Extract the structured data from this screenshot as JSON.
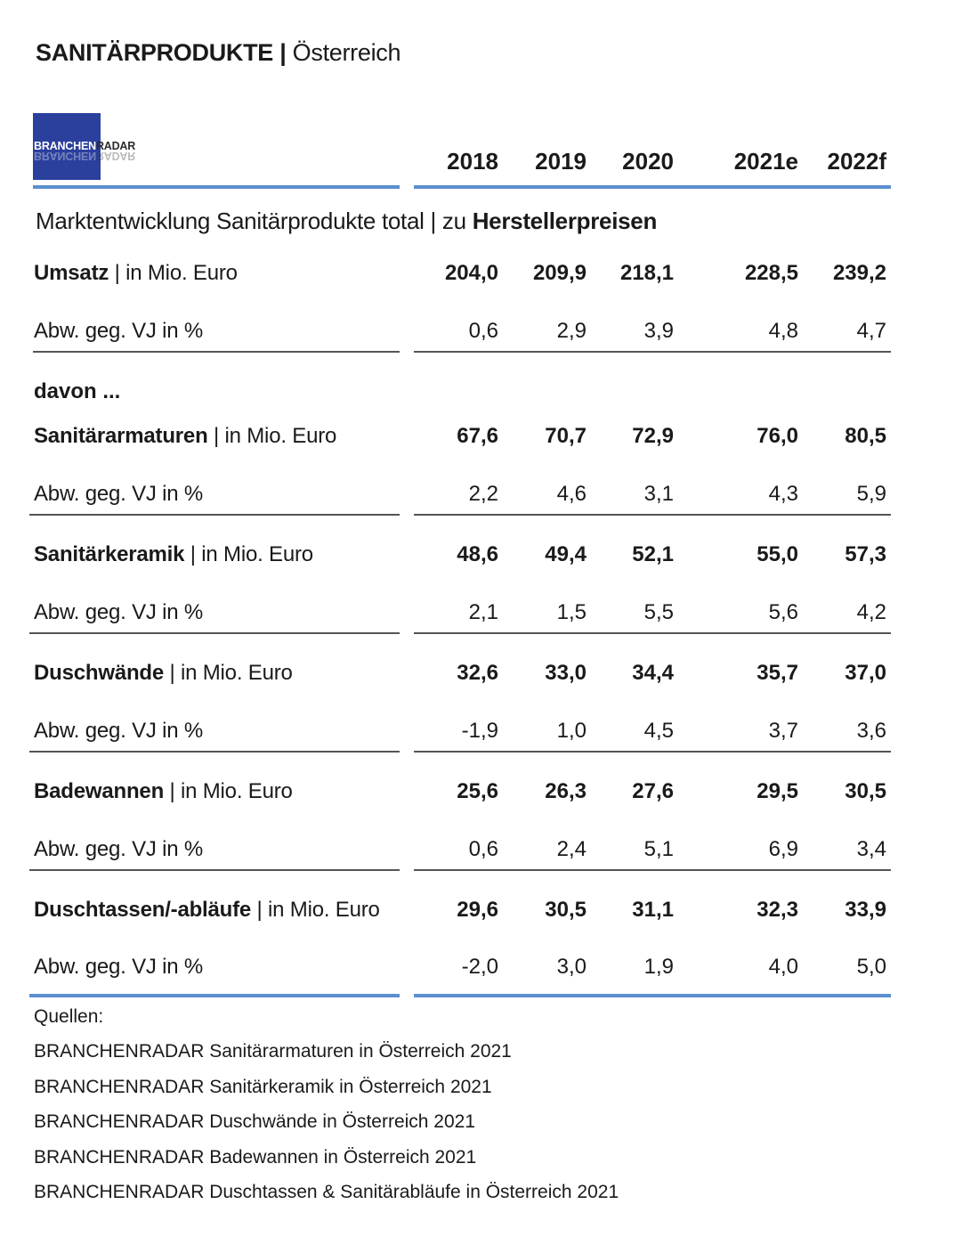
{
  "header": {
    "title_bold": "SANITÄRPRODUKTE |",
    "title_light": "Österreich",
    "logo_text_a": "BRANCHEN",
    "logo_text_b": "RADAR"
  },
  "subtitle": {
    "text": "Marktentwicklung Sanitärprodukte total | zu ",
    "bold": "Herstellerpreisen"
  },
  "chart_data": {
    "type": "table",
    "title": "SANITÄRPRODUKTE | Österreich",
    "subtitle": "Marktentwicklung Sanitärprodukte total | zu Herstellerpreisen",
    "columns": [
      "2018",
      "2019",
      "2020",
      "2021e",
      "2022f"
    ],
    "davon_label": "davon ...",
    "unit_suffix": "| in Mio. Euro",
    "change_label": "Abw. geg. VJ in %",
    "rows": [
      {
        "name": "Umsatz",
        "values": [
          "204,0",
          "209,9",
          "218,1",
          "228,5",
          "239,2"
        ],
        "change": [
          "0,6",
          "2,9",
          "3,9",
          "4,8",
          "4,7"
        ]
      },
      {
        "name": "Sanitärarmaturen",
        "values": [
          "67,6",
          "70,7",
          "72,9",
          "76,0",
          "80,5"
        ],
        "change": [
          "2,2",
          "4,6",
          "3,1",
          "4,3",
          "5,9"
        ]
      },
      {
        "name": "Sanitärkeramik",
        "values": [
          "48,6",
          "49,4",
          "52,1",
          "55,0",
          "57,3"
        ],
        "change": [
          "2,1",
          "1,5",
          "5,5",
          "5,6",
          "4,2"
        ]
      },
      {
        "name": "Duschwände",
        "values": [
          "32,6",
          "33,0",
          "34,4",
          "35,7",
          "37,0"
        ],
        "change": [
          "-1,9",
          "1,0",
          "4,5",
          "3,7",
          "3,6"
        ]
      },
      {
        "name": "Badewannen",
        "values": [
          "25,6",
          "26,3",
          "27,6",
          "29,5",
          "30,5"
        ],
        "change": [
          "0,6",
          "2,4",
          "5,1",
          "6,9",
          "3,4"
        ]
      },
      {
        "name": "Duschtassen/-abläufe",
        "values": [
          "29,6",
          "30,5",
          "31,1",
          "32,3",
          "33,9"
        ],
        "change": [
          "-2,0",
          "3,0",
          "1,9",
          "4,0",
          "5,0"
        ]
      }
    ]
  },
  "sources": {
    "heading": "Quellen:",
    "items": [
      "BRANCHENRADAR Sanitärarmaturen in Österreich 2021",
      "BRANCHENRADAR Sanitärkeramik in Österreich 2021",
      "BRANCHENRADAR Duschwände in Österreich 2021",
      "BRANCHENRADAR Badewannen in Österreich 2021",
      "BRANCHENRADAR Duschtassen & Sanitärabläufe in Österreich 2021"
    ]
  },
  "colors": {
    "accent_blue": "#5b8fd0",
    "logo_blue": "#2b3f9c",
    "rule_grey": "#555555"
  }
}
